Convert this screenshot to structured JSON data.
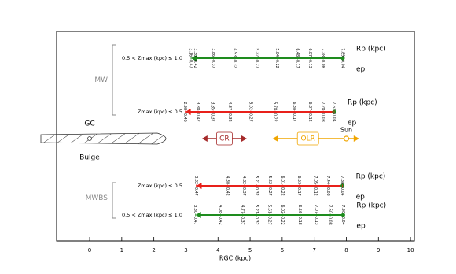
{
  "chart_data": {
    "type": "arrow",
    "xlabel": "RGC (kpc)",
    "xlim": [
      -1.03,
      10.12
    ],
    "xticks": [
      0,
      1,
      2,
      3,
      4,
      5,
      6,
      7,
      8,
      9,
      10
    ],
    "rp_label": "Rp (kpc)",
    "ep_label": "ep",
    "center_label": "GC",
    "bulge_label": "Bulge",
    "groups": [
      {
        "name": "MW",
        "series": [
          {
            "name": "0.5 < Zmax (kpc) ≤ 1.0",
            "color": "#1e8c1e",
            "values": [
              3.16,
              3.3,
              3.86,
              4.53,
              5.22,
              5.84,
              6.48,
              6.87,
              7.28,
              7.89
            ],
            "value_labels": [
              "3.16",
              "3.30",
              "3.86",
              "4.53",
              "5.22",
              "5.84",
              "6.48",
              "6.87",
              "7.28",
              "7.89"
            ],
            "ecc": [
              0.47,
              0.42,
              0.37,
              0.32,
              0.27,
              0.22,
              0.17,
              0.13,
              0.08,
              0.04
            ]
          },
          {
            "name": "Zmax (kpc) ≤ 0.5",
            "color": "#e8201a",
            "values": [
              2.98,
              3.38,
              3.85,
              4.37,
              5.02,
              5.78,
              6.38,
              6.87,
              7.28,
              7.62
            ],
            "value_labels": [
              "2.98",
              "3.38",
              "3.85",
              "4.37",
              "5.02",
              "5.78",
              "6.38",
              "6.87",
              "7.28",
              "7.62"
            ],
            "ecc": [
              0.46,
              0.42,
              0.37,
              0.32,
              0.27,
              0.22,
              0.17,
              0.12,
              0.08,
              0.04
            ]
          }
        ]
      },
      {
        "name": "MWBS",
        "series": [
          {
            "name": "Zmax (kpc) ≤ 0.5",
            "color": "#e8201a",
            "values": [
              3.32,
              4.3,
              4.82,
              5.21,
              5.62,
              6.01,
              6.53,
              7.05,
              7.44,
              7.88
            ],
            "value_labels": [
              "3.32",
              "4.30",
              "4.82",
              "5.21",
              "5.62",
              "6.01",
              "6.53",
              "7.05",
              "7.44",
              "7.88"
            ],
            "ecc": [
              0.47,
              0.42,
              0.37,
              0.32,
              0.27,
              0.22,
              0.17,
              0.12,
              0.08,
              0.04
            ]
          },
          {
            "name": "0.5 < Zmax (kpc) ≤ 1.0",
            "color": "#1e8c1e",
            "values": [
              3.3,
              4.08,
              4.77,
              5.21,
              5.61,
              6.02,
              6.56,
              7.07,
              7.5,
              7.9
            ],
            "value_labels": [
              "3.30",
              "4.08",
              "4.77",
              "5.21",
              "5.61",
              "6.02",
              "6.56",
              "7.07",
              "7.50",
              "7.90"
            ],
            "ecc": [
              0.47,
              0.42,
              0.37,
              0.32,
              0.27,
              0.22,
              0.18,
              0.13,
              0.08,
              0.04
            ]
          }
        ]
      }
    ],
    "resonances": [
      {
        "name": "CR",
        "color": "#a52a2a",
        "range": [
          3.5,
          4.9
        ]
      },
      {
        "name": "OLR",
        "color": "#f0a500",
        "range": [
          5.7,
          8.4
        ]
      }
    ],
    "sun": {
      "name": "Sun",
      "x": 8.0,
      "color": "#f0a500"
    }
  }
}
